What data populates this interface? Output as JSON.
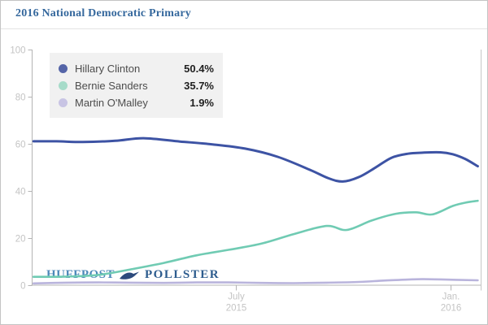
{
  "header": {
    "title": "2016 National Democratic Primary"
  },
  "legend": {
    "items": [
      {
        "label": "Hillary Clinton",
        "value": "50.4%",
        "dot_color": "#5565a8"
      },
      {
        "label": "Bernie Sanders",
        "value": "35.7%",
        "dot_color": "#a6dbc9"
      },
      {
        "label": "Martin O'Malley",
        "value": "1.9%",
        "dot_color": "#c8c4e4"
      }
    ]
  },
  "watermark": {
    "brand": "HUFFPOST",
    "product": "POLLSTER",
    "icon": "pollster-bird"
  },
  "chart_data": {
    "type": "line",
    "title": "2016 National Democratic Primary",
    "x_axis": {
      "unit": "months_since_2015_01_01",
      "range": [
        0.3,
        12.85
      ],
      "ticks": [
        {
          "t": 6,
          "label": [
            "July",
            "2015"
          ]
        },
        {
          "t": 12,
          "label": [
            "Jan.",
            "2016"
          ]
        }
      ]
    },
    "y_axis": {
      "range": [
        0,
        100
      ],
      "ticks": [
        0,
        20,
        40,
        60,
        80,
        100
      ]
    },
    "grid": false,
    "legend_position": "top-left",
    "series": [
      {
        "name": "Hillary Clinton",
        "color": "#3d53a4",
        "width": 3,
        "current": 50.4,
        "points": [
          [
            0.36,
            61
          ],
          [
            1.0,
            61
          ],
          [
            1.73,
            60.7
          ],
          [
            2.64,
            61.2
          ],
          [
            3.43,
            62.3
          ],
          [
            4.45,
            60.9
          ],
          [
            5.36,
            59.7
          ],
          [
            6.27,
            57.9
          ],
          [
            7.18,
            54.4
          ],
          [
            8.09,
            48.8
          ],
          [
            8.6,
            45.3
          ],
          [
            9.0,
            43.9
          ],
          [
            9.45,
            45.8
          ],
          [
            9.91,
            49.8
          ],
          [
            10.36,
            54.0
          ],
          [
            10.82,
            55.7
          ],
          [
            11.27,
            56.2
          ],
          [
            11.73,
            56.3
          ],
          [
            12.07,
            55.5
          ],
          [
            12.42,
            53.5
          ],
          [
            12.77,
            50.4
          ]
        ]
      },
      {
        "name": "Bernie Sanders",
        "color": "#70cbb3",
        "width": 2.6,
        "current": 35.7,
        "points": [
          [
            0.36,
            3.4
          ],
          [
            1.27,
            3.5
          ],
          [
            2.18,
            4.2
          ],
          [
            3.09,
            6.6
          ],
          [
            4.0,
            9.3
          ],
          [
            4.91,
            12.5
          ],
          [
            5.82,
            14.9
          ],
          [
            6.73,
            17.5
          ],
          [
            7.64,
            21.6
          ],
          [
            8.55,
            25.0
          ],
          [
            9.11,
            23.3
          ],
          [
            9.8,
            27.3
          ],
          [
            10.48,
            30.2
          ],
          [
            11.05,
            30.8
          ],
          [
            11.5,
            29.9
          ],
          [
            12.07,
            33.5
          ],
          [
            12.45,
            35.0
          ],
          [
            12.77,
            35.7
          ]
        ]
      },
      {
        "name": "Martin O'Malley",
        "color": "#b9b4dc",
        "width": 2.6,
        "current": 1.9,
        "points": [
          [
            0.36,
            0.6
          ],
          [
            1.27,
            0.9
          ],
          [
            2.18,
            1.0
          ],
          [
            3.09,
            0.9
          ],
          [
            4.0,
            0.8
          ],
          [
            4.91,
            1.0
          ],
          [
            5.82,
            1.0
          ],
          [
            6.73,
            0.8
          ],
          [
            7.64,
            0.7
          ],
          [
            8.55,
            0.9
          ],
          [
            9.45,
            1.2
          ],
          [
            10.14,
            1.8
          ],
          [
            10.82,
            2.2
          ],
          [
            11.27,
            2.4
          ],
          [
            12.18,
            2.1
          ],
          [
            12.77,
            1.9
          ]
        ]
      }
    ],
    "colors": {
      "axis": "#b4b4b4",
      "tick_label": "#c4c4c4",
      "plot_right_border": "#c6c6c6"
    }
  }
}
